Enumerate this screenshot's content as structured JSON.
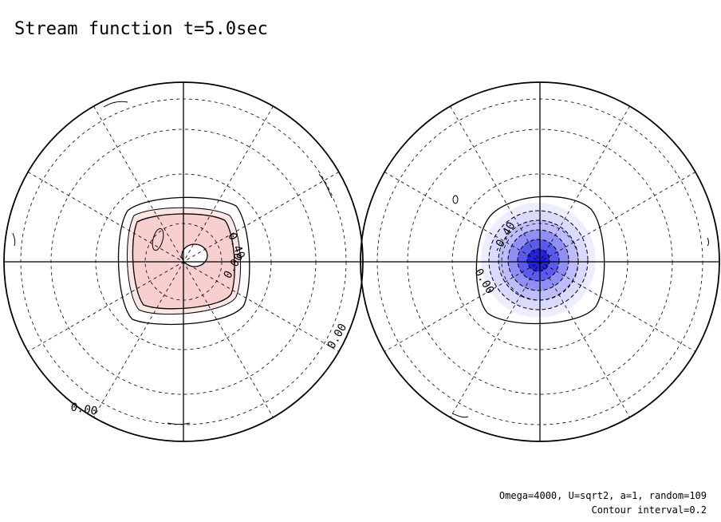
{
  "title": "Stream function t=5.0sec",
  "caption": {
    "params": "Omega=4000, U=sqrt2, a=1, random=109",
    "interval": "Contour interval=0.2"
  },
  "colors": {
    "positive_fill": "#f7cfcf",
    "positive_fill_light": "#fbe6e6",
    "negative_fill_light": "#dadaff",
    "negative_fill_mid": "#8f8ff5",
    "negative_fill_dark": "#2222dd",
    "line": "#000000"
  },
  "chart_data": [
    {
      "type": "polar-contour",
      "hemisphere": "north",
      "contour_interval": 0.2,
      "latitude_circles_dashed": 4,
      "meridian_spokes_deg": 30,
      "shading": "positive (red)",
      "contour_labels": [
        "0.40",
        "0.00",
        "0.00",
        "0.00"
      ]
    },
    {
      "type": "polar-contour",
      "hemisphere": "south",
      "contour_interval": 0.2,
      "latitude_circles_dashed": 4,
      "meridian_spokes_deg": 30,
      "shading": "negative (blue)",
      "contour_labels": [
        "-0.40",
        "0.00"
      ]
    }
  ]
}
